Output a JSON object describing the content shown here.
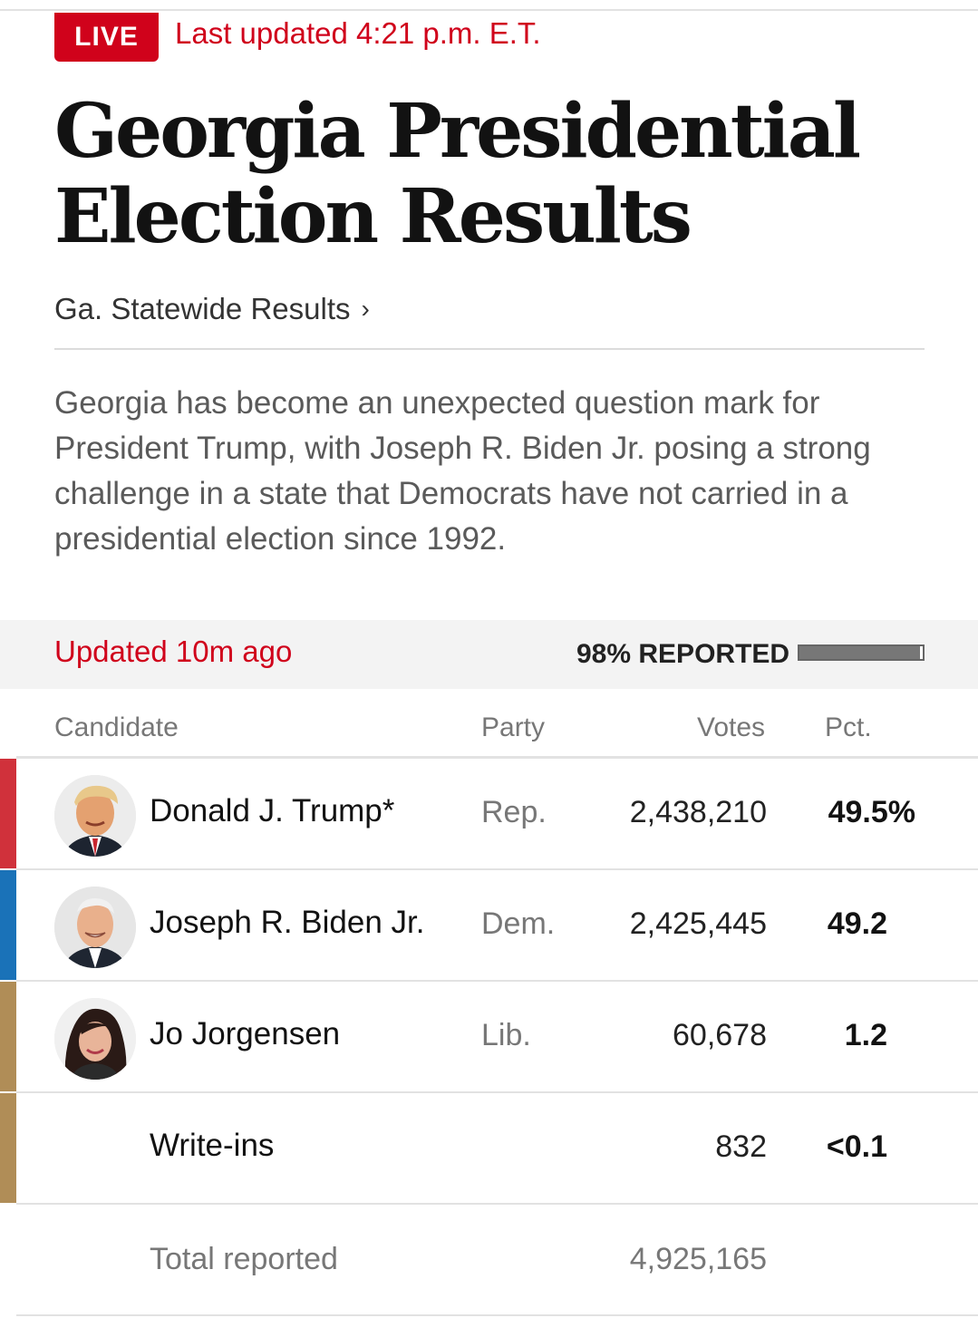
{
  "header": {
    "live_label": "LIVE",
    "last_updated": "Last updated 4:21 p.m. E.T.",
    "title": "Georgia Presidential Election Results",
    "statewide_link": "Ga. Statewide Results",
    "summary": "Georgia has become an unexpected question mark for President Trump, with Joseph R. Biden Jr. posing a strong challenge in a state that Democrats have not carried in a presidential election since 1992."
  },
  "status": {
    "updated_ago": "Updated 10m ago",
    "reported_label": "98% REPORTED",
    "reported_fraction": 0.98
  },
  "table": {
    "columns": {
      "candidate": "Candidate",
      "party": "Party",
      "votes": "Votes",
      "pct": "Pct."
    },
    "rows": [
      {
        "name": "Donald J. Trump*",
        "party": "Rep.",
        "votes": "2,438,210",
        "pct": "49.5%",
        "color": "#d0313b",
        "photo": "trump-photo"
      },
      {
        "name": "Joseph R. Biden Jr.",
        "party": "Dem.",
        "votes": "2,425,445",
        "pct": "49.2",
        "color": "#1a72b8",
        "photo": "biden-photo"
      },
      {
        "name": "Jo Jorgensen",
        "party": "Lib.",
        "votes": "60,678",
        "pct": "1.2",
        "color": "#b08d57",
        "photo": "jorgensen-photo"
      },
      {
        "name": "Write-ins",
        "party": "",
        "votes": "832",
        "pct": "<0.1",
        "color": "#b08d57",
        "photo": ""
      }
    ],
    "total_label": "Total reported",
    "total_votes": "4,925,165"
  }
}
